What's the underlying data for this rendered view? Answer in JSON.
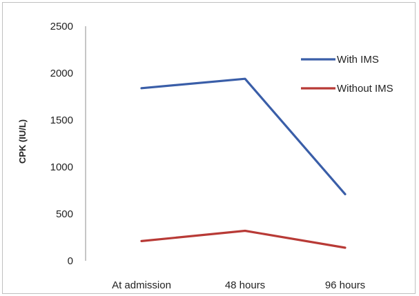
{
  "chart_data": {
    "type": "line",
    "title": "",
    "xlabel": "",
    "ylabel": "CPK (IU/L)",
    "categories": [
      "At admission",
      "48 hours",
      "96 hours"
    ],
    "ylim": [
      0,
      2500
    ],
    "yticks": [
      0,
      500,
      1000,
      1500,
      2000,
      2500
    ],
    "grid": false,
    "legend_position": "top-right",
    "series": [
      {
        "name": "With IMS",
        "color": "#3a5ea8",
        "values": [
          1840,
          1940,
          710
        ]
      },
      {
        "name": "Without IMS",
        "color": "#b83a36",
        "values": [
          210,
          320,
          140
        ]
      }
    ]
  }
}
